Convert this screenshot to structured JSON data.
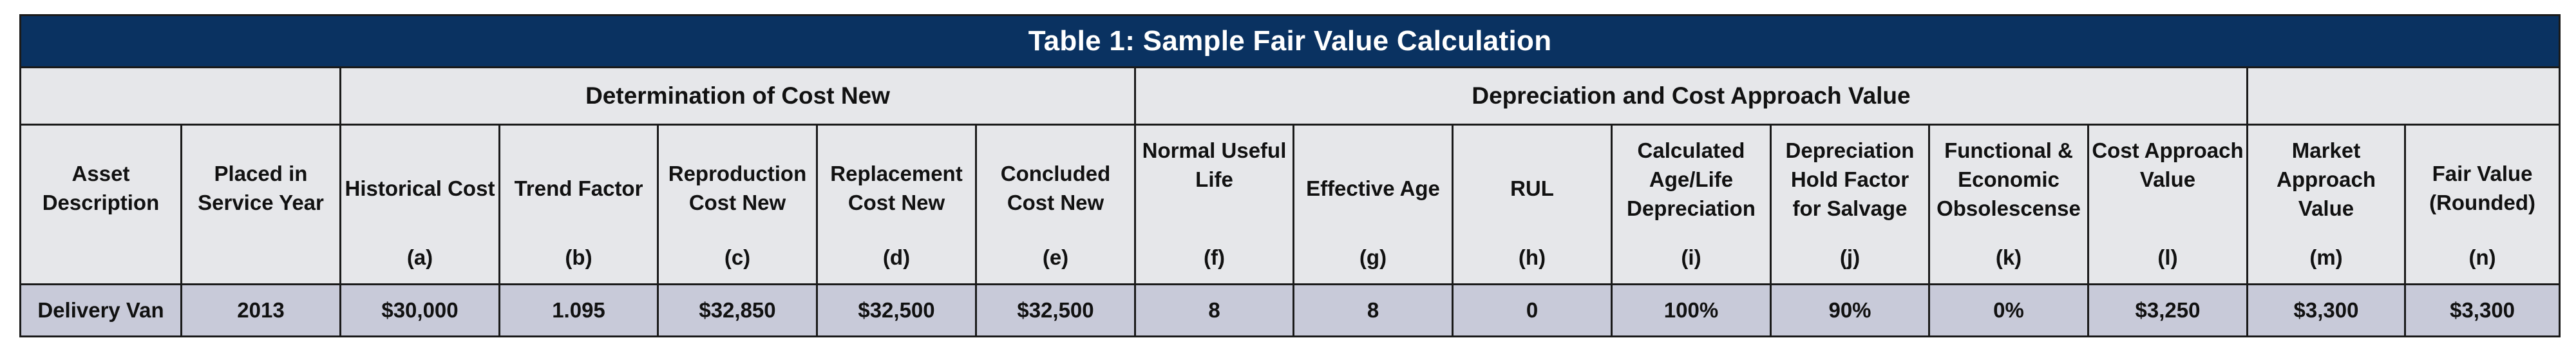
{
  "title": "Table 1: Sample Fair Value Calculation",
  "groups": {
    "blank_left": "",
    "cost_new": "Determination of Cost New",
    "depreciation": "Depreciation and Cost Approach Value",
    "blank_right": ""
  },
  "columns": [
    {
      "label": "Asset Description",
      "letter": ""
    },
    {
      "label": "Placed in Service Year",
      "letter": ""
    },
    {
      "label": "Historical Cost",
      "letter": "(a)"
    },
    {
      "label": "Trend Factor",
      "letter": "(b)"
    },
    {
      "label": "Reproduction Cost New",
      "letter": "(c)"
    },
    {
      "label": "Replacement Cost New",
      "letter": "(d)"
    },
    {
      "label": "Concluded Cost New",
      "letter": "(e)"
    },
    {
      "label": "Normal Useful Life",
      "letter": "(f)"
    },
    {
      "label": "Effective Age",
      "letter": "(g)"
    },
    {
      "label": "RUL",
      "letter": "(h)"
    },
    {
      "label": "Calculated Age/Life Depreciation",
      "letter": "(i)"
    },
    {
      "label": "Depreciation Hold Factor for Salvage",
      "letter": "(j)"
    },
    {
      "label": "Functional & Economic Obsolescense",
      "letter": "(k)"
    },
    {
      "label": "Cost Approach Value",
      "letter": "(l)"
    },
    {
      "label": "Market Approach Value",
      "letter": "(m)"
    },
    {
      "label": "Fair Value (Rounded)",
      "letter": "(n)"
    }
  ],
  "rows": [
    [
      "Delivery Van",
      "2013",
      "$30,000",
      "1.095",
      "$32,850",
      "$32,500",
      "$32,500",
      "8",
      "8",
      "0",
      "100%",
      "90%",
      "0%",
      "$3,250",
      "$3,300",
      "$3,300"
    ]
  ],
  "colors": {
    "title_bg": "#0a3261",
    "header_bg": "#e6e7ea",
    "data_bg": "#c8cad9",
    "border": "#1a1a1a"
  }
}
